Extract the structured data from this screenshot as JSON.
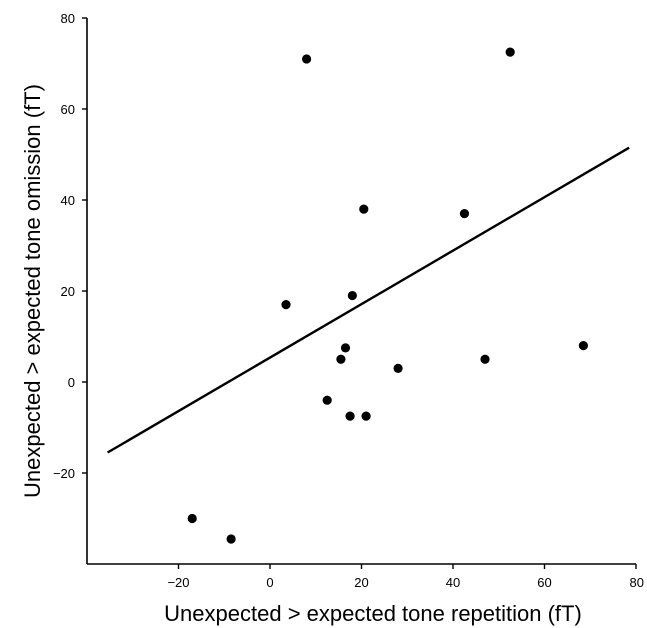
{
  "chart_data": {
    "type": "scatter",
    "title": "",
    "xlabel": "Unexpected > expected tone repetition (fT)",
    "ylabel": "Unexpected > expected tone omission (fT)",
    "xlim": [
      -40,
      80
    ],
    "ylim": [
      -40,
      80
    ],
    "xticks": [
      -20,
      0,
      20,
      40,
      60,
      80
    ],
    "xtick_labels": [
      "−20",
      "0",
      "20",
      "40",
      "60",
      "80"
    ],
    "yticks": [
      -20,
      0,
      20,
      40,
      60,
      80
    ],
    "ytick_labels": [
      "−20",
      "0",
      "20",
      "40",
      "60",
      "80"
    ],
    "grid": false,
    "points": [
      {
        "x": -17,
        "y": -30
      },
      {
        "x": -8.5,
        "y": -34.5
      },
      {
        "x": 3.5,
        "y": 17
      },
      {
        "x": 8,
        "y": 71
      },
      {
        "x": 12.5,
        "y": -4
      },
      {
        "x": 15.5,
        "y": 5
      },
      {
        "x": 16.5,
        "y": 7.5
      },
      {
        "x": 17.5,
        "y": -7.5
      },
      {
        "x": 18,
        "y": 19
      },
      {
        "x": 20.5,
        "y": 38
      },
      {
        "x": 21,
        "y": -7.5
      },
      {
        "x": 28,
        "y": 3
      },
      {
        "x": 42.5,
        "y": 37
      },
      {
        "x": 47,
        "y": 5
      },
      {
        "x": 52.5,
        "y": 72.5
      },
      {
        "x": 68.5,
        "y": 8
      }
    ],
    "fit_line": {
      "x": [
        -35.5,
        78.5
      ],
      "y": [
        -15.5,
        51.5
      ]
    }
  }
}
